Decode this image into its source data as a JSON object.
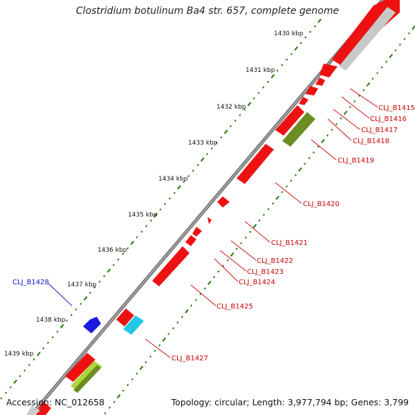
{
  "title": "Clostridium botulinum Ba4 str. 657, complete genome",
  "accession": "Accession: NC_012658",
  "summary": "Topology: circular; Length: 3,977,794 bp; Genes: 3,799",
  "colors": {
    "backbone": "#7a7a7a",
    "tick": "#2e7d12",
    "forward_gene": "#ee1111",
    "reverse_gene_label": "#cc0000",
    "forward_gene_label": "#1010cc",
    "blue_gene": "#1a1ae0",
    "cyan_gene": "#22c8e8",
    "olive_gene": "#6b8e23",
    "lime_gene": "#a8d83a",
    "grey_gene": "#c8c8c8"
  },
  "kbp_labels": [
    "1430 kbp",
    "1431 kbp",
    "1432 kbp",
    "1433 kbp",
    "1434 kbp",
    "1435 kbp",
    "1436 kbp",
    "1437 kbp",
    "1438 kbp",
    "1439 kbp"
  ],
  "gene_labels": [
    "CLJ_B1415",
    "CLJ_B1416",
    "CLJ_B1417",
    "CLJ_B1418",
    "CLJ_B1419",
    "CLJ_B1420",
    "CLJ_B1421",
    "CLJ_B1422",
    "CLJ_B1423",
    "CLJ_B1424",
    "CLJ_B1425",
    "CLJ_B1427",
    "CLJ_B1428"
  ]
}
